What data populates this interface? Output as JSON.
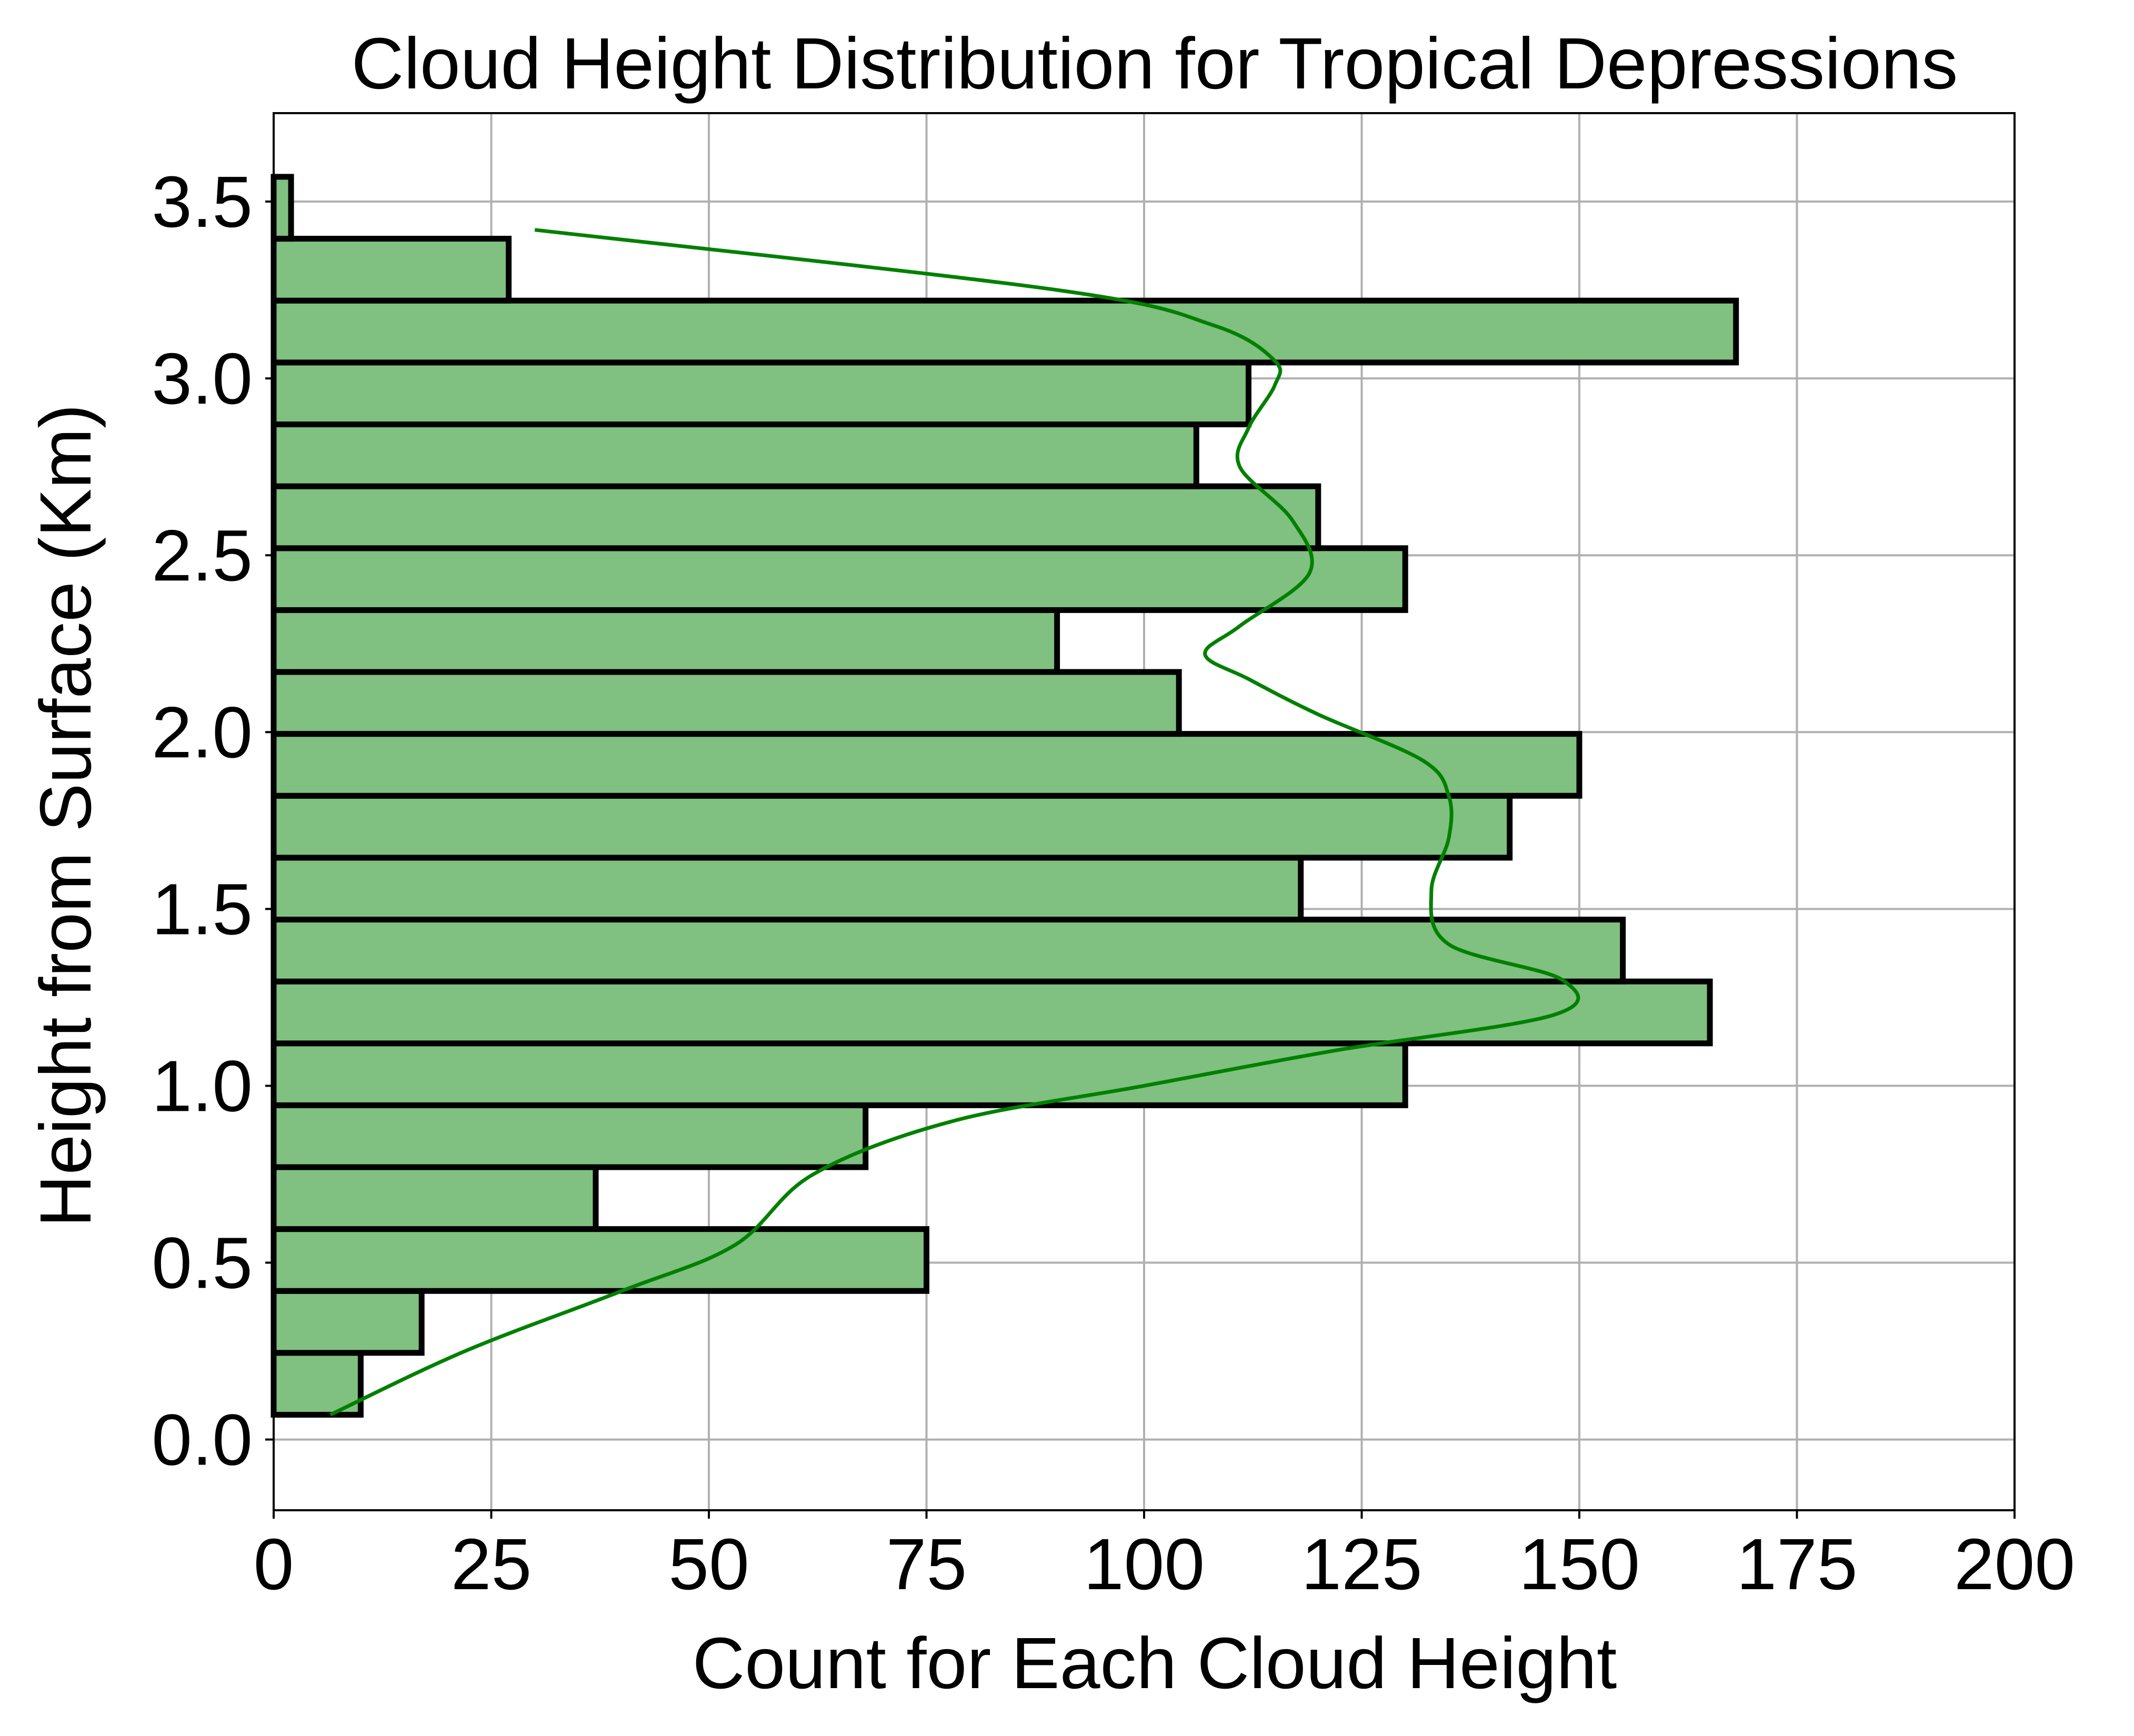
{
  "chart_data": {
    "type": "bar",
    "orientation": "horizontal",
    "title": "Cloud Height Distribution for Tropical Depressions",
    "xlabel": "Count for Each Cloud Height",
    "ylabel": "Height from Surface (Km)",
    "xlim": [
      0,
      200
    ],
    "ylim": [
      -0.2,
      3.75
    ],
    "xticks": [
      0,
      25,
      50,
      75,
      100,
      125,
      150,
      175,
      200
    ],
    "xtick_labels": [
      "0",
      "25",
      "50",
      "75",
      "100",
      "125",
      "150",
      "175",
      "200"
    ],
    "yticks": [
      0.0,
      0.5,
      1.0,
      1.5,
      2.0,
      2.5,
      3.0,
      3.5
    ],
    "ytick_labels": [
      "0.0",
      "0.5",
      "1.0",
      "1.5",
      "2.0",
      "2.5",
      "3.0",
      "3.5"
    ],
    "grid": true,
    "bin_edges": [
      0.07,
      0.245,
      0.42,
      0.595,
      0.77,
      0.945,
      1.12,
      1.295,
      1.47,
      1.645,
      1.82,
      1.995,
      2.17,
      2.345,
      2.52,
      2.695,
      2.87,
      3.045,
      3.22,
      3.395,
      3.57
    ],
    "counts": [
      10,
      17,
      75,
      37,
      68,
      130,
      165,
      155,
      118,
      142,
      150,
      104,
      90,
      130,
      120,
      106,
      112,
      168,
      27,
      2
    ],
    "bar_color": "#80c080",
    "edge_color": "#000000",
    "kde": {
      "color": "#008000",
      "y": [
        0.07,
        0.25,
        0.42,
        0.55,
        0.75,
        0.9,
        1.0,
        1.1,
        1.2,
        1.3,
        1.4,
        1.55,
        1.7,
        1.82,
        1.92,
        2.05,
        2.15,
        2.22,
        2.3,
        2.45,
        2.6,
        2.75,
        2.86,
        2.98,
        3.05,
        3.15,
        3.25,
        3.42
      ],
      "x": [
        6.5,
        22,
        40,
        53,
        62,
        78,
        100,
        122,
        147,
        148,
        135,
        133,
        135,
        135,
        132,
        120,
        112,
        107,
        111,
        119,
        117,
        111,
        112,
        115,
        115,
        108,
        90,
        30
      ]
    }
  }
}
